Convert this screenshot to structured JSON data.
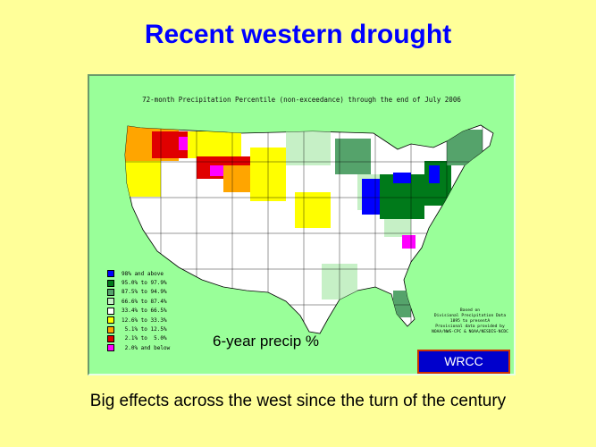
{
  "slide": {
    "title": "Recent western drought",
    "caption": "Big effects across the west since the turn of the century"
  },
  "map": {
    "title": "72-month Precipitation Percentile (non-exceedance) through the end of July 2006",
    "overlay_label": "6-year precip %",
    "source_lines": [
      "Based on",
      "Divisional Precipitation Data",
      "1895 to presentA",
      "Provisional data provided by",
      "NOAA/NWS-CPC & NOAA/NESDIS-NCDC"
    ],
    "badge": "WRCC",
    "colors": {
      "background": "#ffff99",
      "panel": "#99ff99",
      "title": "#0000ff",
      "badge_fill": "#0000cc",
      "badge_border": "#cc3300"
    }
  },
  "legend": [
    {
      "label": "98% and above",
      "color": "#0000ff"
    },
    {
      "label": "95.0% to 97.9%",
      "color": "#007a1a"
    },
    {
      "label": "87.5% to 94.9%",
      "color": "#55a36b"
    },
    {
      "label": "66.6% to 87.4%",
      "color": "#c6f0c6"
    },
    {
      "label": "33.4% to 66.5%",
      "color": "#ffffff"
    },
    {
      "label": "12.6% to 33.3%",
      "color": "#ffff00"
    },
    {
      "label": " 5.1% to 12.5%",
      "color": "#ffa500"
    },
    {
      "label": " 2.1% to  5.0%",
      "color": "#e00000"
    },
    {
      "label": " 2.0% and below",
      "color": "#ff00ff"
    }
  ]
}
